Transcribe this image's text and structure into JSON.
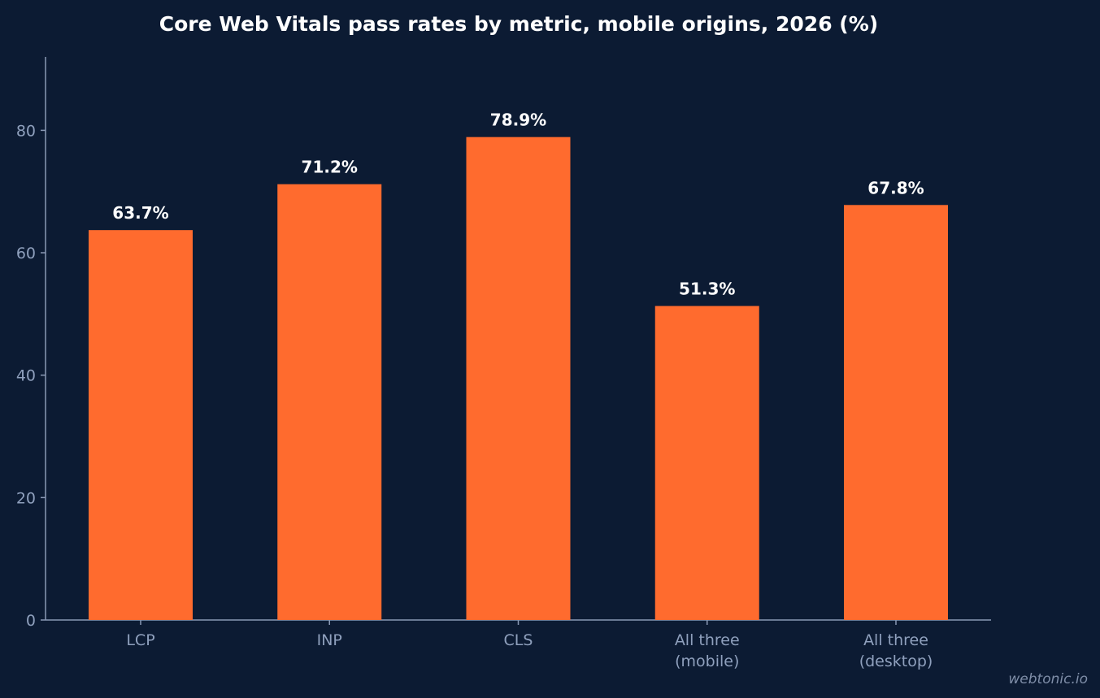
{
  "chart_data": {
    "type": "bar",
    "title": "Core Web Vitals pass rates by metric, mobile origins, 2026 (%)",
    "categories": [
      "LCP",
      "INP",
      "CLS",
      "All three\n(mobile)",
      "All three\n(desktop)"
    ],
    "values": [
      63.7,
      71.2,
      78.9,
      51.3,
      67.8
    ],
    "value_labels": [
      "63.7%",
      "71.2%",
      "78.9%",
      "51.3%",
      "67.8%"
    ],
    "xlabel": "",
    "ylabel": "",
    "ylim": [
      0,
      92
    ],
    "yticks": [
      0,
      20,
      40,
      60,
      80
    ],
    "grid": false,
    "colors": {
      "background": "#0c1b33",
      "bar": "#ff6b2e",
      "axis": "#8a99b5",
      "tick_text": "#8fa0bd",
      "value_text": "#ffffff",
      "title_text": "#ffffff"
    }
  },
  "watermark": "webtonic.io"
}
